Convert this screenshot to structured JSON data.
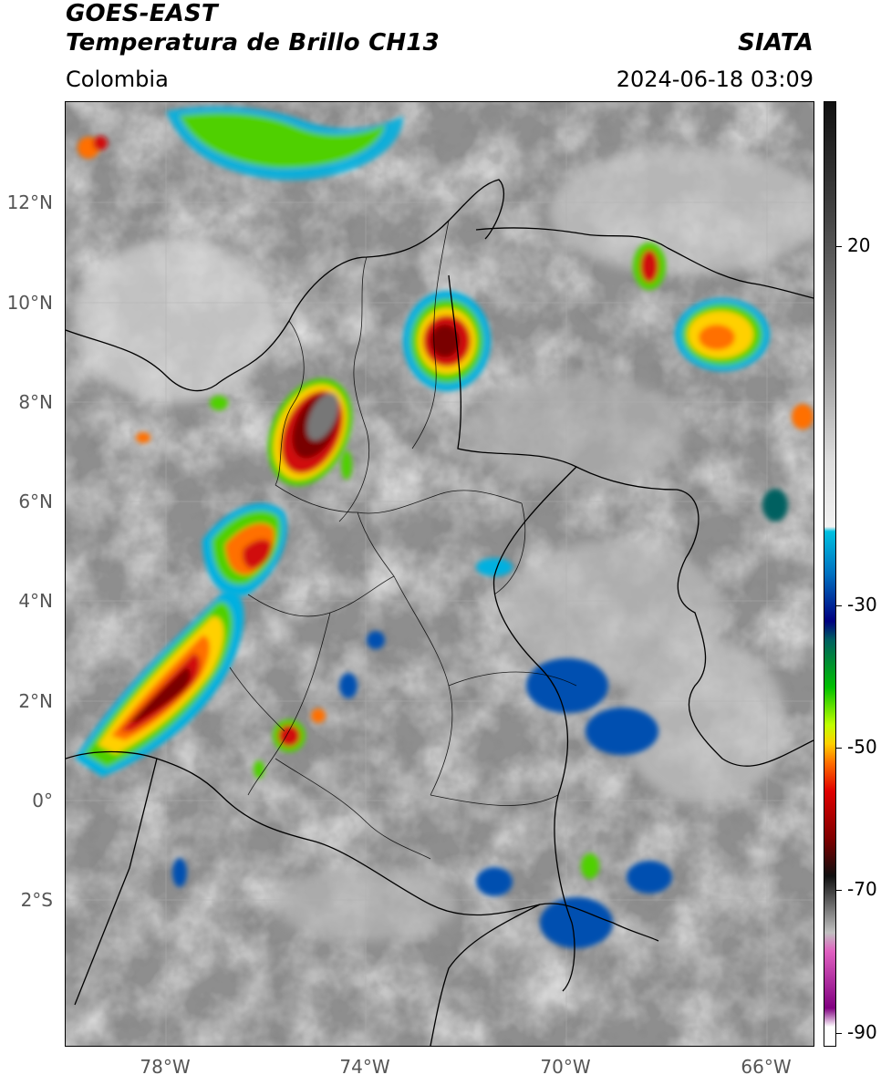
{
  "header": {
    "satellite": "GOES-EAST",
    "product": "Temperatura de Brillo CH13",
    "brand": "SIATA",
    "region": "Colombia",
    "datetime": "2024-06-18 03:09"
  },
  "map": {
    "lat_ticks": [
      "12°N",
      "10°N",
      "8°N",
      "6°N",
      "4°N",
      "2°N",
      "0°",
      "2°S"
    ],
    "lon_ticks": [
      "78°W",
      "74°W",
      "70°W",
      "66°W"
    ],
    "background_gray": "#8f8f8f",
    "border_color": "#000000",
    "storm_colors": [
      "#7a0000",
      "#d01010",
      "#ff7000",
      "#ffd000",
      "#4fd000",
      "#00a060",
      "#0050b0",
      "#00b0e0"
    ]
  },
  "colorbar": {
    "labels": [
      "20",
      "-30",
      "-50",
      "-70",
      "-90"
    ],
    "colors": [
      "#111111",
      "#444444",
      "#777777",
      "#aaaaaa",
      "#dddddd",
      "#f2f2f2",
      "#00c0e0",
      "#0070c0",
      "#000080",
      "#006060",
      "#00c000",
      "#c0ff00",
      "#ffd000",
      "#ff7000",
      "#e00000",
      "#800000",
      "#101010",
      "#c0c0c0",
      "#e060c0",
      "#800080",
      "#ffffff"
    ]
  }
}
